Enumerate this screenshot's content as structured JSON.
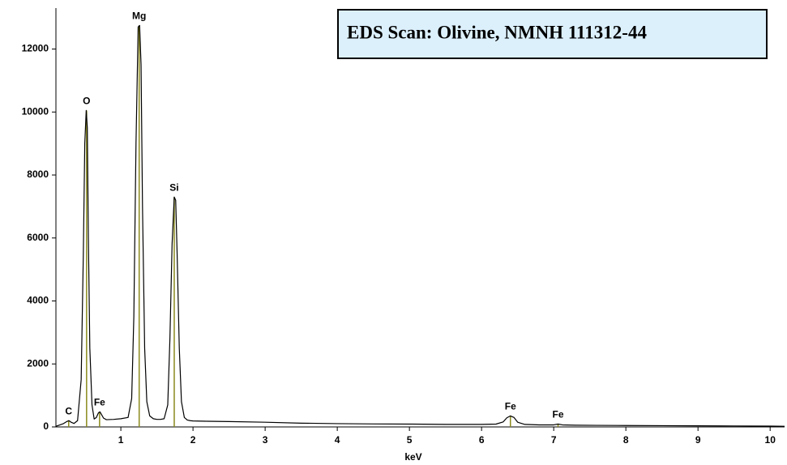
{
  "chart_data": {
    "type": "line",
    "title": "EDS Scan:  Olivine, NMNH 111312-44",
    "x_label": "keV",
    "xlim": [
      0.1,
      10.2
    ],
    "xticks": [
      1,
      2,
      3,
      4,
      5,
      6,
      7,
      8,
      9,
      10
    ],
    "ylim": [
      0,
      13300
    ],
    "yticks": [
      0,
      2000,
      4000,
      6000,
      8000,
      10000,
      12000
    ],
    "grid": false,
    "x": [
      0.1,
      0.15,
      0.2,
      0.25,
      0.28,
      0.31,
      0.35,
      0.4,
      0.45,
      0.48,
      0.5,
      0.52,
      0.535,
      0.55,
      0.57,
      0.6,
      0.63,
      0.66,
      0.69,
      0.71,
      0.73,
      0.76,
      0.8,
      0.9,
      1.0,
      1.1,
      1.15,
      1.18,
      1.21,
      1.24,
      1.26,
      1.28,
      1.3,
      1.33,
      1.36,
      1.4,
      1.45,
      1.5,
      1.55,
      1.6,
      1.65,
      1.68,
      1.71,
      1.74,
      1.76,
      1.78,
      1.81,
      1.84,
      1.88,
      1.92,
      1.96,
      2.0,
      2.2,
      2.5,
      3.0,
      3.5,
      4.0,
      4.5,
      5.0,
      5.5,
      6.0,
      6.2,
      6.3,
      6.35,
      6.4,
      6.45,
      6.5,
      6.6,
      6.8,
      7.0,
      7.06,
      7.12,
      7.3,
      7.6,
      8.0,
      8.5,
      9.0,
      9.5,
      10.0,
      10.2
    ],
    "series": [
      {
        "color": "#000000",
        "values": [
          20,
          60,
          100,
          170,
          200,
          150,
          110,
          200,
          1500,
          5500,
          9000,
          10050,
          9500,
          6000,
          2500,
          700,
          250,
          300,
          450,
          480,
          400,
          280,
          230,
          240,
          260,
          300,
          900,
          3500,
          9000,
          12700,
          12750,
          11500,
          7000,
          2500,
          800,
          350,
          260,
          240,
          240,
          260,
          700,
          2800,
          5800,
          7300,
          7200,
          5500,
          2500,
          800,
          300,
          220,
          200,
          190,
          180,
          170,
          150,
          120,
          105,
          95,
          90,
          80,
          80,
          90,
          160,
          290,
          350,
          300,
          150,
          80,
          65,
          65,
          90,
          65,
          55,
          50,
          45,
          40,
          35,
          30,
          25,
          20
        ]
      }
    ],
    "marker_color": "#8a8a1e",
    "peak_markers": [
      {
        "label": "C",
        "x": 0.277,
        "y": 200
      },
      {
        "label": "O",
        "x": 0.525,
        "y": 10050
      },
      {
        "label": "Fe",
        "x": 0.705,
        "y": 480
      },
      {
        "label": "Mg",
        "x": 1.254,
        "y": 12750
      },
      {
        "label": "Si",
        "x": 1.74,
        "y": 7300
      },
      {
        "label": "Fe",
        "x": 6.4,
        "y": 350
      },
      {
        "label": "Fe",
        "x": 7.06,
        "y": 90
      }
    ]
  }
}
